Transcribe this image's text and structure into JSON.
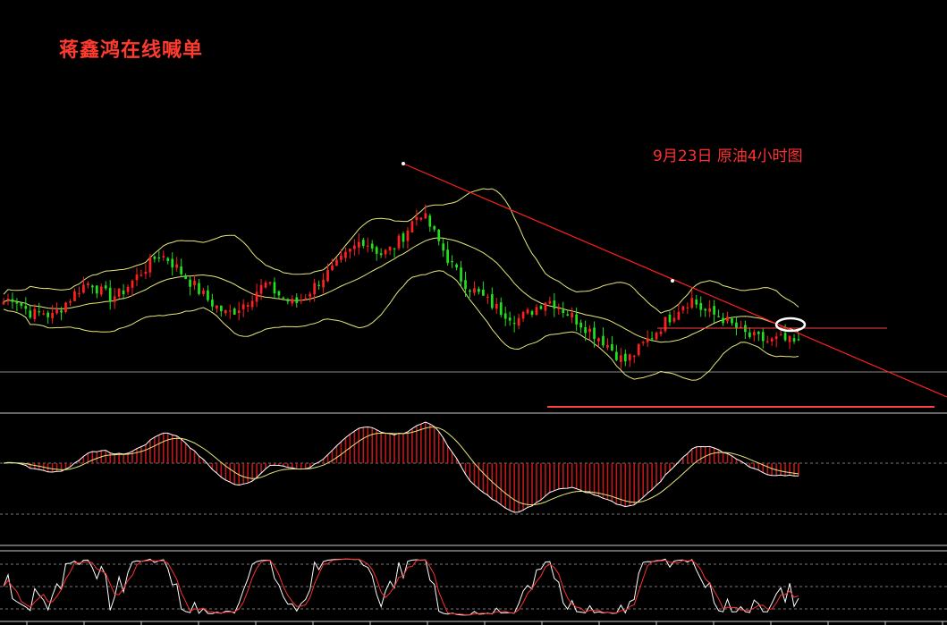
{
  "watermark_text": "蒋鑫鸿在线喊单",
  "caption_text": "9月23日 原油4小时图",
  "colors": {
    "background": "#000000",
    "candle_up": "#ff2020",
    "candle_down": "#20e020",
    "bollinger": "#e8e878",
    "trendline": "#ff3030",
    "macd_hist": "#c01818",
    "macd_line": "#ffffff",
    "signal_line": "#e8e878",
    "stoch_k": "#ffffff",
    "stoch_d": "#ff3030",
    "marker": "#ffffff"
  },
  "chart_data": [
    {
      "type": "candlestick",
      "panel": "price",
      "indicators": [
        "Bollinger Bands"
      ],
      "close_profile": [
        42,
        44,
        40,
        37,
        38,
        36,
        40,
        44,
        48,
        50,
        46,
        44,
        45,
        49,
        53,
        57,
        61,
        59,
        55,
        51,
        47,
        43,
        40,
        37,
        39,
        42,
        46,
        49,
        46,
        43,
        41,
        44,
        48,
        52,
        55,
        59,
        63,
        67,
        64,
        61,
        63,
        67,
        73,
        78,
        72,
        65,
        58,
        52,
        48,
        45,
        42,
        39,
        37,
        35,
        37,
        40,
        43,
        41,
        38,
        35,
        32,
        29,
        26,
        22,
        18,
        21,
        25,
        29,
        33,
        37,
        41,
        43,
        39,
        37,
        36,
        33,
        30,
        28,
        27,
        26,
        27,
        26,
        25
      ],
      "trendline_from_peak_to_right_edge": true,
      "horizontal_resistance": true,
      "horizontal_support": true,
      "highlight_ellipse": true
    },
    {
      "type": "bar",
      "panel": "macd",
      "series": [
        {
          "name": "",
          "role": "histogram"
        },
        {
          "name": "",
          "role": "line"
        },
        {
          "name": "",
          "role": "signal"
        }
      ]
    },
    {
      "type": "line",
      "panel": "stochastic",
      "series": [
        {
          "name": "",
          "role": "k"
        },
        {
          "name": "",
          "role": "d"
        }
      ]
    }
  ]
}
